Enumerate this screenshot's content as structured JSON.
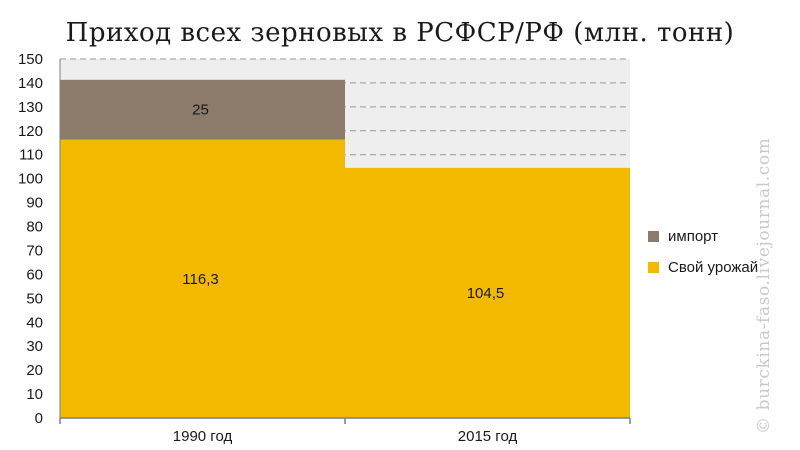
{
  "chart_data": {
    "type": "bar",
    "stacked": true,
    "title": "Приход всех зерновых в РСФСР/РФ (млн. тонн)",
    "categories": [
      "1990 год",
      "2015 год"
    ],
    "series": [
      {
        "name": "Свой урожай",
        "values": [
          116.3,
          104.5
        ],
        "labels": [
          "116,3",
          "104,5"
        ],
        "color": "#f2b900"
      },
      {
        "name": "импорт",
        "values": [
          25,
          null
        ],
        "labels": [
          "25",
          ""
        ],
        "color": "#8c7b6b"
      }
    ],
    "ylim": [
      0,
      150
    ],
    "yticks": [
      0,
      10,
      20,
      30,
      40,
      50,
      60,
      70,
      80,
      90,
      100,
      110,
      120,
      130,
      140,
      150
    ],
    "grid": true,
    "legend_position": "right",
    "legend_order": [
      "импорт",
      "Свой урожай"
    ]
  },
  "watermark": "© burckina-faso.livejournal.com",
  "colors": {
    "plot_background": "#eeeeee",
    "gridline": "#9a9a9a",
    "axis": "#7f7f7f"
  }
}
